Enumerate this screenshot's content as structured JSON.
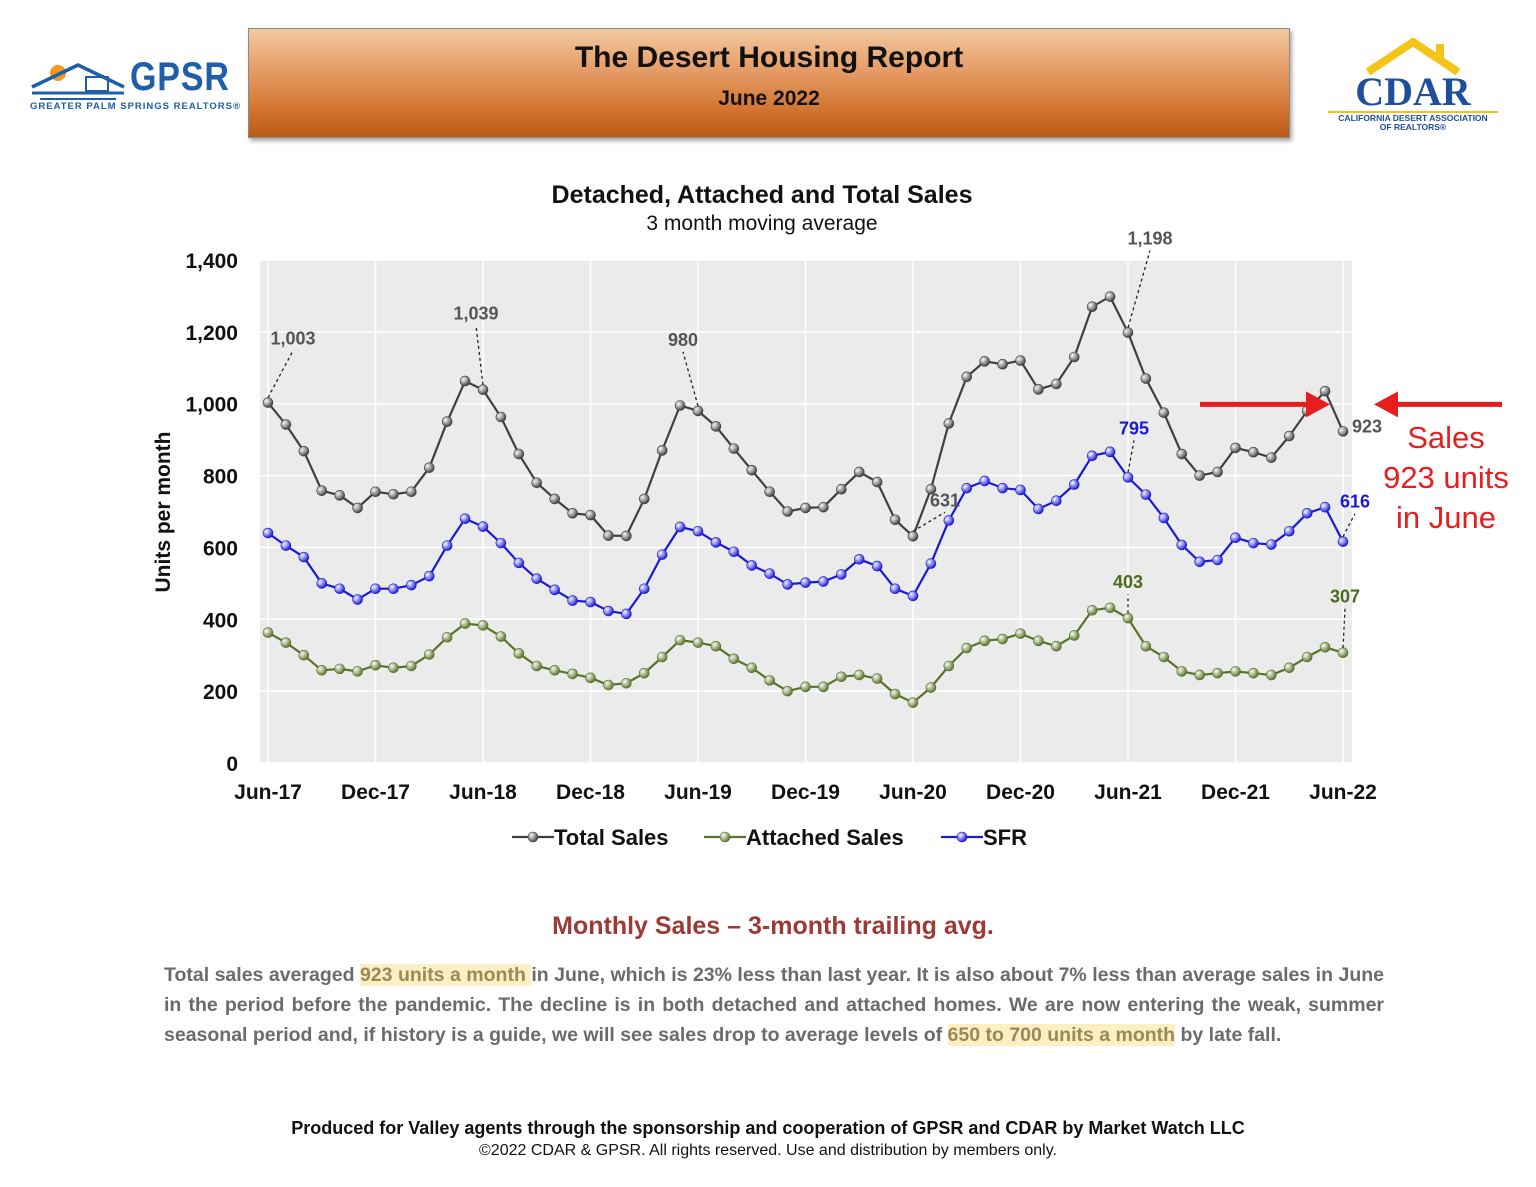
{
  "header": {
    "title": "The Desert Housing Report",
    "subtitle": "June 2022",
    "logo_left": {
      "name": "GPSR",
      "tagline": "GREATER PALM SPRINGS REALTORS®"
    },
    "logo_right": {
      "name": "CDAR",
      "tagline_1": "CALIFORNIA DESERT ASSOCIATION",
      "tagline_2": "OF REALTORS®"
    }
  },
  "chart_data": {
    "type": "line",
    "title": "Detached, Attached and Total Sales",
    "subtitle": "3 month moving average",
    "xlabel": "",
    "ylabel": "Units per month",
    "ylim": [
      0,
      1400
    ],
    "yticks": [
      "0",
      "200",
      "400",
      "600",
      "800",
      "1,000",
      "1,200",
      "1,400"
    ],
    "ytick_values": [
      0,
      200,
      400,
      600,
      800,
      1000,
      1200,
      1400
    ],
    "xtick_labels": [
      "Jun-17",
      "Dec-17",
      "Jun-18",
      "Dec-18",
      "Jun-19",
      "Dec-19",
      "Jun-20",
      "Dec-20",
      "Jun-21",
      "Dec-21",
      "Jun-22"
    ],
    "months": [
      "Jun-17",
      "Jul-17",
      "Aug-17",
      "Sep-17",
      "Oct-17",
      "Nov-17",
      "Dec-17",
      "Jan-18",
      "Feb-18",
      "Mar-18",
      "Apr-18",
      "May-18",
      "Jun-18",
      "Jul-18",
      "Aug-18",
      "Sep-18",
      "Oct-18",
      "Nov-18",
      "Dec-18",
      "Jan-19",
      "Feb-19",
      "Mar-19",
      "Apr-19",
      "May-19",
      "Jun-19",
      "Jul-19",
      "Aug-19",
      "Sep-19",
      "Oct-19",
      "Nov-19",
      "Dec-19",
      "Jan-20",
      "Feb-20",
      "Mar-20",
      "Apr-20",
      "May-20",
      "Jun-20",
      "Jul-20",
      "Aug-20",
      "Sep-20",
      "Oct-20",
      "Nov-20",
      "Dec-20",
      "Jan-21",
      "Feb-21",
      "Mar-21",
      "Apr-21",
      "May-21",
      "Jun-21",
      "Jul-21",
      "Aug-21",
      "Sep-21",
      "Oct-21",
      "Nov-21",
      "Dec-21",
      "Jan-22",
      "Feb-22",
      "Mar-22",
      "Apr-22",
      "May-22",
      "Jun-22"
    ],
    "series": [
      {
        "name": "Total Sales",
        "color": "#404040",
        "values": [
          1003,
          942,
          868,
          758,
          745,
          710,
          755,
          748,
          755,
          822,
          950,
          1063,
          1039,
          963,
          860,
          780,
          735,
          695,
          690,
          633,
          632,
          735,
          870,
          995,
          980,
          937,
          875,
          815,
          755,
          700,
          710,
          712,
          762,
          810,
          782,
          677,
          631,
          762,
          945,
          1075,
          1118,
          1110,
          1120,
          1040,
          1055,
          1130,
          1270,
          1298,
          1198,
          1070,
          975,
          860,
          800,
          810,
          877,
          865,
          850,
          910,
          980,
          1035,
          923
        ]
      },
      {
        "name": "Attached Sales",
        "color": "#5a7228",
        "values": [
          363,
          335,
          300,
          258,
          262,
          255,
          272,
          265,
          270,
          302,
          350,
          388,
          383,
          352,
          305,
          270,
          258,
          248,
          237,
          217,
          222,
          250,
          295,
          342,
          335,
          325,
          290,
          265,
          230,
          200,
          212,
          212,
          240,
          245,
          235,
          192,
          168,
          210,
          270,
          320,
          340,
          345,
          360,
          340,
          325,
          355,
          425,
          432,
          403,
          325,
          295,
          255,
          245,
          250,
          255,
          250,
          245,
          265,
          295,
          322,
          307
        ]
      },
      {
        "name": "SFR",
        "color": "#1a1ad6",
        "values": [
          640,
          605,
          573,
          500,
          485,
          455,
          485,
          485,
          495,
          520,
          605,
          680,
          658,
          612,
          557,
          513,
          482,
          452,
          448,
          423,
          415,
          485,
          580,
          657,
          645,
          614,
          588,
          550,
          527,
          497,
          502,
          505,
          525,
          567,
          548,
          485,
          465,
          555,
          675,
          765,
          785,
          765,
          760,
          707,
          730,
          775,
          855,
          866,
          795,
          747,
          682,
          607,
          560,
          565,
          627,
          612,
          608,
          645,
          695,
          712,
          616
        ]
      }
    ],
    "annotations": [
      {
        "series": "Total Sales",
        "month": "Jun-17",
        "label": "1,003"
      },
      {
        "series": "Total Sales",
        "month": "Jun-18",
        "label": "1,039"
      },
      {
        "series": "Total Sales",
        "month": "Jun-19",
        "label": "980"
      },
      {
        "series": "Total Sales",
        "month": "Jun-20",
        "label": "631"
      },
      {
        "series": "Total Sales",
        "month": "Jun-21",
        "label": "1,198"
      },
      {
        "series": "Total Sales",
        "month": "Jun-22",
        "label": "923"
      },
      {
        "series": "SFR",
        "month": "Jun-21",
        "label": "795"
      },
      {
        "series": "SFR",
        "month": "Jun-22",
        "label": "616"
      },
      {
        "series": "Attached Sales",
        "month": "Jun-21",
        "label": "403"
      },
      {
        "series": "Attached Sales",
        "month": "Jun-22",
        "label": "307"
      }
    ],
    "legend_position": "bottom",
    "grid": true
  },
  "callout": {
    "line1": "Sales",
    "line2": "923 units",
    "line3": "in June",
    "color": "#e81e1e"
  },
  "commentary": {
    "heading": "Monthly Sales – 3-month trailing avg.",
    "part1": "Total sales averaged ",
    "highlight1": "923 units a month ",
    "part2": "in June, which is 23% less than last year. It is also about 7% less than average sales in June in the period before the pandemic. The decline is in both detached and attached homes. We are now entering the weak, summer seasonal period and, if history is a guide, we will see sales drop to average levels of ",
    "highlight2": "650 to 700 units a month",
    "part3": " by late fall."
  },
  "footer": {
    "line1": "Produced for Valley agents through the sponsorship and cooperation of GPSR and CDAR by Market Watch LLC",
    "line2": "©2022 CDAR & GPSR.  All rights reserved.  Use and distribution by members only."
  }
}
